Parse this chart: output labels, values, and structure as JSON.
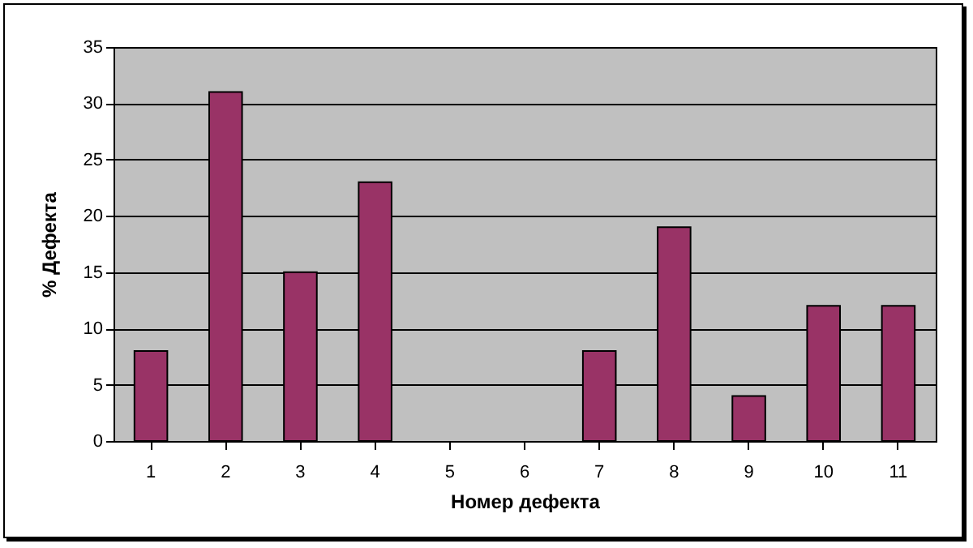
{
  "chart_data": {
    "type": "bar",
    "xlabel": "Номер дефекта",
    "ylabel": "% Дефекта",
    "categories": [
      "1",
      "2",
      "3",
      "4",
      "5",
      "6",
      "7",
      "8",
      "9",
      "10",
      "11"
    ],
    "values": [
      8,
      31,
      15,
      23,
      0,
      0,
      8,
      19,
      4,
      12,
      12
    ],
    "color": "#993366",
    "ylim": [
      0,
      35
    ],
    "yticks": [
      0,
      5,
      10,
      15,
      20,
      25,
      30,
      35
    ],
    "grid": "y"
  }
}
